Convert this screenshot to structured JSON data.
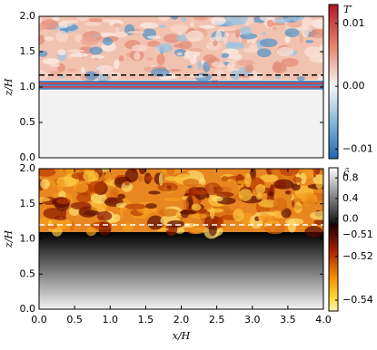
{
  "chart_data": [
    {
      "type": "heatmap",
      "ylabel": "z/H",
      "xlim": [
        0,
        4
      ],
      "ylim": [
        0,
        2
      ],
      "yticks": [
        {
          "value": 0,
          "label": "0.0"
        },
        {
          "value": 0.5,
          "label": "0.5"
        },
        {
          "value": 1,
          "label": "1.0"
        },
        {
          "value": 1.5,
          "label": "1.5"
        },
        {
          "value": 2,
          "label": "2.0"
        }
      ],
      "hline": 1.17,
      "colorbar": {
        "label": "T′",
        "segments": [
          {
            "lim": [
              0.013,
              -0.0115
            ],
            "ticks": [
              {
                "value": 0.01,
                "label": "0.01"
              },
              {
                "value": 0,
                "label": "0.00"
              },
              {
                "value": -0.01,
                "label": "−0.01"
              }
            ]
          }
        ]
      }
    },
    {
      "type": "heatmap",
      "xlabel": "x/H",
      "ylabel": "z/H",
      "xlim": [
        0,
        4
      ],
      "ylim": [
        0,
        2
      ],
      "xticks": [
        {
          "value": 0,
          "label": "0.0"
        },
        {
          "value": 0.5,
          "label": "0.5"
        },
        {
          "value": 1,
          "label": "1.0"
        },
        {
          "value": 1.5,
          "label": "1.5"
        },
        {
          "value": 2,
          "label": "2.0"
        },
        {
          "value": 2.5,
          "label": "2.5"
        },
        {
          "value": 3,
          "label": "3.0"
        },
        {
          "value": 3.5,
          "label": "3.5"
        },
        {
          "value": 4,
          "label": "4.0"
        }
      ],
      "yticks": [
        {
          "value": 0,
          "label": "0.0"
        },
        {
          "value": 0.5,
          "label": "0.5"
        },
        {
          "value": 1,
          "label": "1.0"
        },
        {
          "value": 1.5,
          "label": "1.5"
        },
        {
          "value": 2,
          "label": "2.0"
        }
      ],
      "hline": 1.2,
      "colorbar": {
        "label": "c̃",
        "segments": [
          {
            "lim": [
              1.0,
              -0.1
            ],
            "ticks": [
              0.8,
              0.4,
              {
                "value": 0,
                "label": "0.0"
              }
            ]
          },
          {
            "lim": [
              -0.505,
              -0.545
            ],
            "ticks": [
              {
                "value": -0.51,
                "label": "−0.51"
              },
              {
                "value": -0.52,
                "label": "−0.52"
              },
              {
                "value": -0.54,
                "label": "−0.54"
              }
            ]
          }
        ]
      }
    }
  ]
}
